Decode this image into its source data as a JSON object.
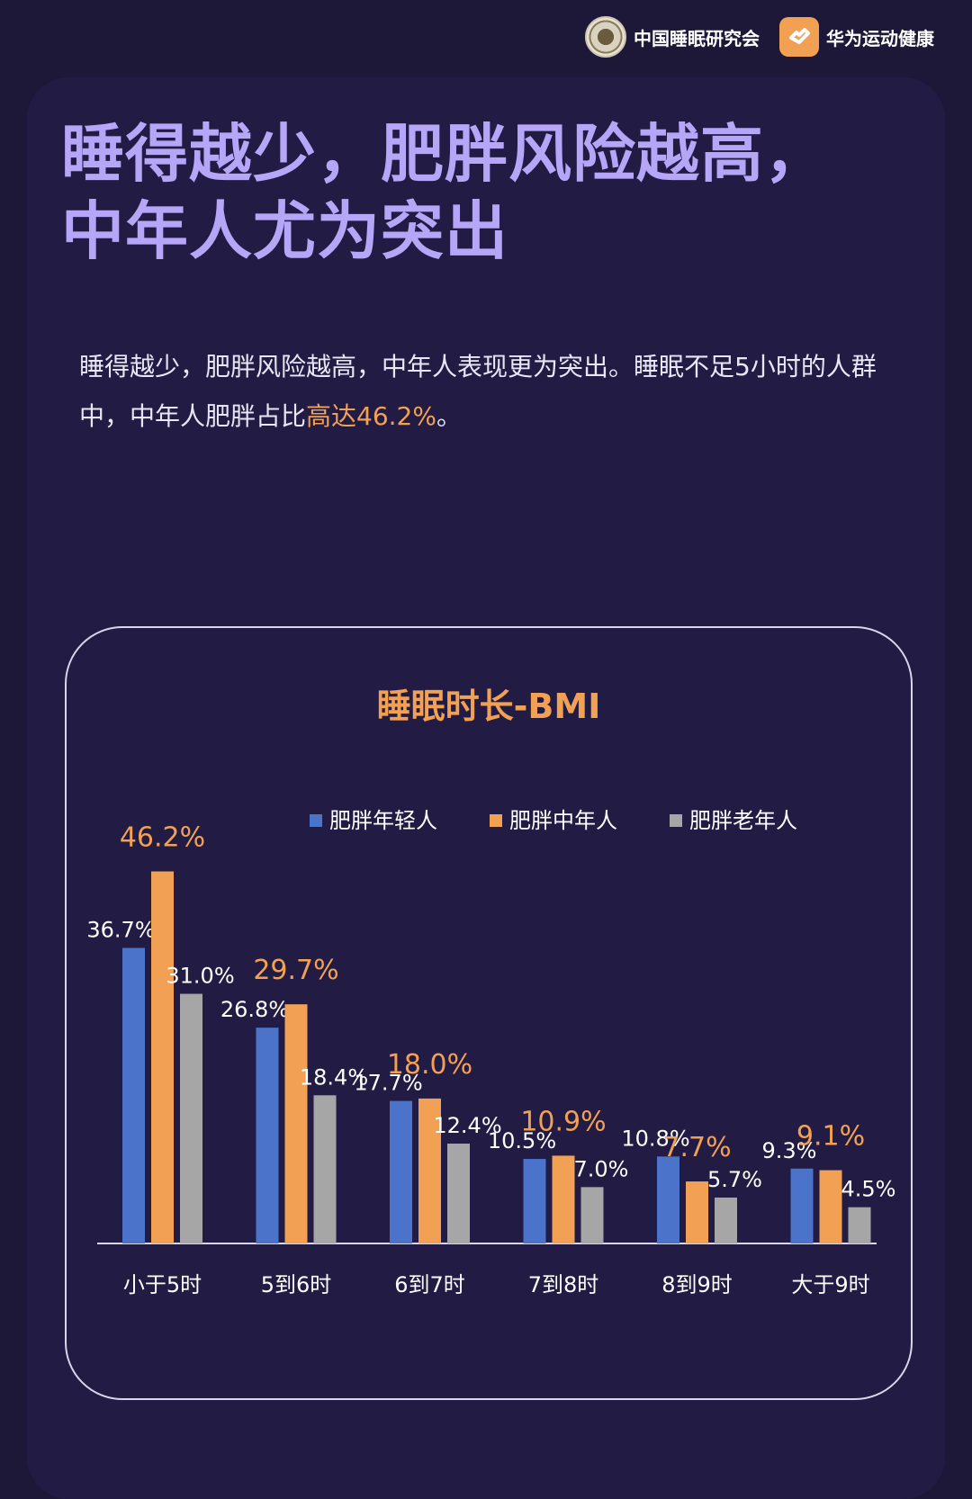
{
  "header": {
    "logo_cssrs_text": "中国睡眠研究会",
    "logo_huawei_text": "华为运动健康"
  },
  "headline": {
    "line1": "睡得越少，肥胖风险越高，",
    "line2": "中年人尤为突出"
  },
  "description": {
    "text_main": "睡得越少，肥胖风险越高，中年人表现更为突出。睡眠不足5小时的人群中，中年人肥胖占比",
    "text_highlight": "高达46.2%",
    "text_end": "。"
  },
  "colors": {
    "young": "#4a73c9",
    "middle": "#f2a154",
    "old": "#a6a6a6",
    "headline": "#b6a6f7",
    "accent": "#f2a154"
  },
  "chart_data": {
    "type": "bar",
    "title": "睡眠时长-BMI",
    "categories": [
      "小于5时",
      "5到6时",
      "6到7时",
      "7到8时",
      "8到9时",
      "大于9时"
    ],
    "series": [
      {
        "name": "肥胖年轻人",
        "values": [
          36.7,
          26.8,
          17.7,
          10.5,
          10.8,
          9.3
        ],
        "labels": [
          "36.7%",
          "26.8%",
          "17.7%",
          "10.5%",
          "10.8%",
          "9.3%"
        ]
      },
      {
        "name": "肥胖中年人",
        "values": [
          46.2,
          29.7,
          18.0,
          10.9,
          7.7,
          9.1
        ],
        "labels": [
          "46.2%",
          "29.7%",
          "18.0%",
          "10.9%",
          "7.7%",
          "9.1%"
        ]
      },
      {
        "name": "肥胖老年人",
        "values": [
          31.0,
          18.4,
          12.4,
          7.0,
          5.7,
          4.5
        ],
        "labels": [
          "31.0%",
          "18.4%",
          "12.4%",
          "7.0%",
          "5.7%",
          "4.5%"
        ]
      }
    ],
    "ylim": [
      0,
      50
    ],
    "grid": false,
    "legend_position": "top-right"
  }
}
